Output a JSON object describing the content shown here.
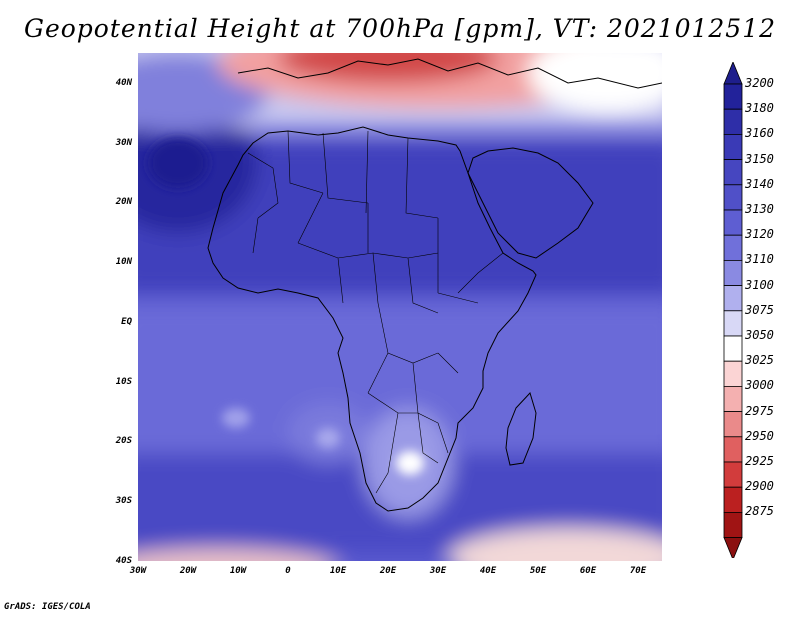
{
  "title": "Geopotential Height at 700hPa [gpm], VT: 2021012512",
  "footer": "GrADS: IGES/COLA",
  "map": {
    "variable": "Geopotential Height",
    "level": "700hPa",
    "units": "gpm",
    "valid_time": "2021012512",
    "lon_range": [
      -30,
      75
    ],
    "lat_range": [
      -40,
      45
    ],
    "lat_ticks": [
      "40N",
      "30N",
      "20N",
      "10N",
      "EQ",
      "10S",
      "20S",
      "30S",
      "40S"
    ],
    "lat_values": [
      40,
      30,
      20,
      10,
      0,
      -10,
      -20,
      -30,
      -40
    ],
    "lon_ticks": [
      "30W",
      "20W",
      "10W",
      "0",
      "10E",
      "20E",
      "30E",
      "40E",
      "50E",
      "60E",
      "70E"
    ],
    "lon_values": [
      -30,
      -20,
      -10,
      0,
      10,
      20,
      30,
      40,
      50,
      60,
      70
    ]
  },
  "colorbar": {
    "labels": [
      "3200",
      "3180",
      "3160",
      "3150",
      "3140",
      "3130",
      "3120",
      "3110",
      "3100",
      "3075",
      "3050",
      "3025",
      "3000",
      "2975",
      "2950",
      "2925",
      "2900",
      "2875"
    ],
    "colors": [
      "#22229a",
      "#2e2ea8",
      "#3a3ab6",
      "#4646c0",
      "#5050c8",
      "#5e5ed2",
      "#7070da",
      "#8a8ae2",
      "#b0b0ee",
      "#d8d8f6",
      "#ffffff",
      "#fbd4d4",
      "#f4b0b0",
      "#ea8a8a",
      "#e06060",
      "#d23c3c",
      "#bb2020",
      "#a01414"
    ],
    "top_color": "#1e1e8c",
    "bottom_color": "#8b1010"
  }
}
